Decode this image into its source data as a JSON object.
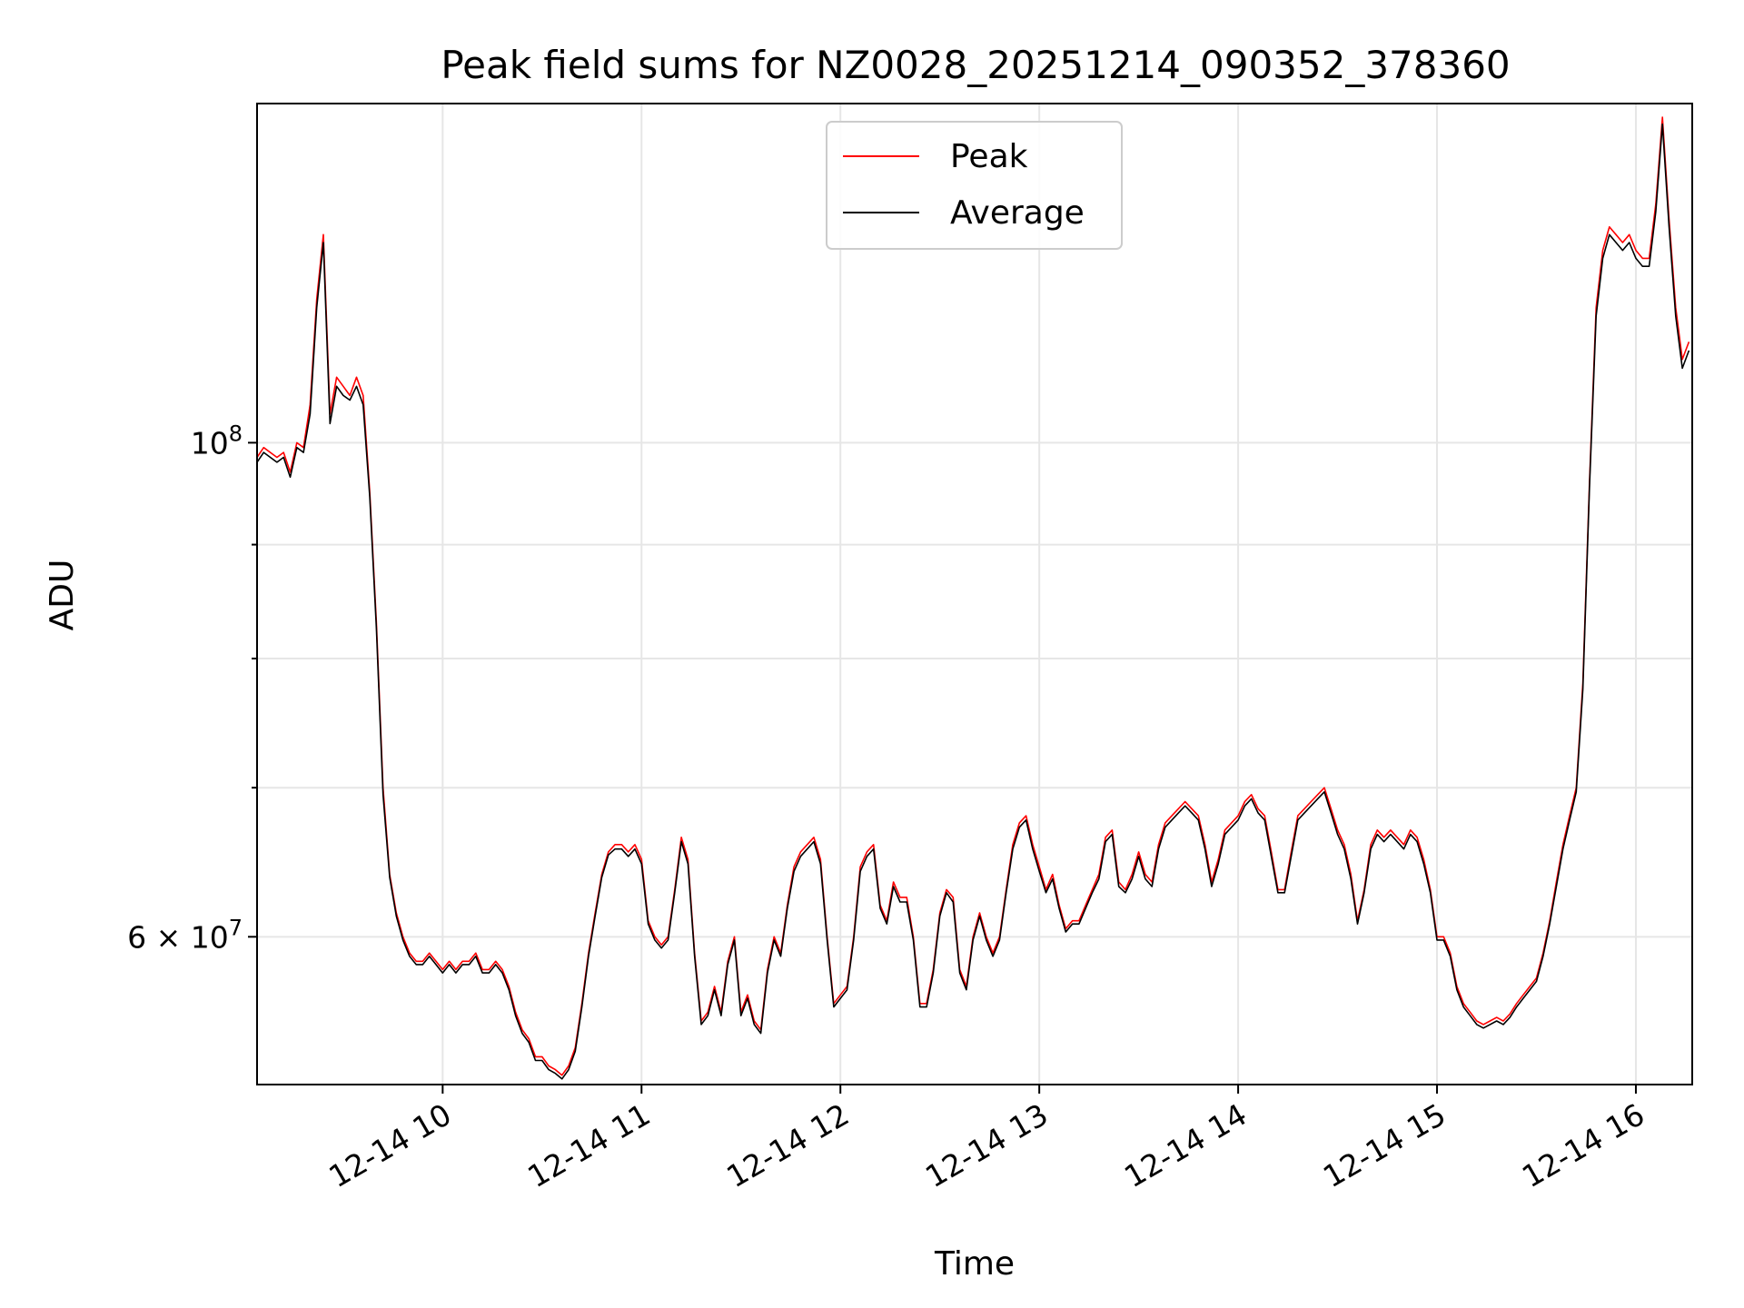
{
  "chart_data": {
    "type": "line",
    "title": "Peak field sums for NZ0028_20251214_090352_378360",
    "xlabel": "Time",
    "ylabel": "ADU",
    "yscale": "log",
    "grid": true,
    "legend_position": "top-center",
    "xlim": [
      "2025-12-14 09:04",
      "2025-12-14 16:17"
    ],
    "ylim": [
      51500000,
      142000000
    ],
    "x_ticks": [
      {
        "value": "2025-12-14 10:00",
        "label": "12-14 10"
      },
      {
        "value": "2025-12-14 11:00",
        "label": "12-14 11"
      },
      {
        "value": "2025-12-14 12:00",
        "label": "12-14 12"
      },
      {
        "value": "2025-12-14 13:00",
        "label": "12-14 13"
      },
      {
        "value": "2025-12-14 14:00",
        "label": "12-14 14"
      },
      {
        "value": "2025-12-14 15:00",
        "label": "12-14 15"
      },
      {
        "value": "2025-12-14 16:00",
        "label": "12-14 16"
      }
    ],
    "y_ticks_major": [
      {
        "value": 60000000,
        "label_base": "6 × 10",
        "label_exp": "7"
      },
      {
        "value": 100000000,
        "label_base": "10",
        "label_exp": "8"
      }
    ],
    "y_ticks_minor": [
      70000000,
      80000000,
      90000000
    ],
    "x": [
      "2025-12-14 09:04",
      "2025-12-14 09:06",
      "2025-12-14 09:08",
      "2025-12-14 09:10",
      "2025-12-14 09:12",
      "2025-12-14 09:14",
      "2025-12-14 09:16",
      "2025-12-14 09:18",
      "2025-12-14 09:20",
      "2025-12-14 09:22",
      "2025-12-14 09:24",
      "2025-12-14 09:26",
      "2025-12-14 09:28",
      "2025-12-14 09:30",
      "2025-12-14 09:32",
      "2025-12-14 09:34",
      "2025-12-14 09:36",
      "2025-12-14 09:38",
      "2025-12-14 09:40",
      "2025-12-14 09:42",
      "2025-12-14 09:44",
      "2025-12-14 09:46",
      "2025-12-14 09:48",
      "2025-12-14 09:50",
      "2025-12-14 09:52",
      "2025-12-14 09:54",
      "2025-12-14 09:56",
      "2025-12-14 09:58",
      "2025-12-14 10:00",
      "2025-12-14 10:02",
      "2025-12-14 10:04",
      "2025-12-14 10:06",
      "2025-12-14 10:08",
      "2025-12-14 10:10",
      "2025-12-14 10:12",
      "2025-12-14 10:14",
      "2025-12-14 10:16",
      "2025-12-14 10:18",
      "2025-12-14 10:20",
      "2025-12-14 10:22",
      "2025-12-14 10:24",
      "2025-12-14 10:26",
      "2025-12-14 10:28",
      "2025-12-14 10:30",
      "2025-12-14 10:32",
      "2025-12-14 10:34",
      "2025-12-14 10:36",
      "2025-12-14 10:38",
      "2025-12-14 10:40",
      "2025-12-14 10:42",
      "2025-12-14 10:44",
      "2025-12-14 10:46",
      "2025-12-14 10:48",
      "2025-12-14 10:50",
      "2025-12-14 10:52",
      "2025-12-14 10:54",
      "2025-12-14 10:56",
      "2025-12-14 10:58",
      "2025-12-14 11:00",
      "2025-12-14 11:02",
      "2025-12-14 11:04",
      "2025-12-14 11:06",
      "2025-12-14 11:08",
      "2025-12-14 11:10",
      "2025-12-14 11:12",
      "2025-12-14 11:14",
      "2025-12-14 11:16",
      "2025-12-14 11:18",
      "2025-12-14 11:20",
      "2025-12-14 11:22",
      "2025-12-14 11:24",
      "2025-12-14 11:26",
      "2025-12-14 11:28",
      "2025-12-14 11:30",
      "2025-12-14 11:32",
      "2025-12-14 11:34",
      "2025-12-14 11:36",
      "2025-12-14 11:38",
      "2025-12-14 11:40",
      "2025-12-14 11:42",
      "2025-12-14 11:44",
      "2025-12-14 11:46",
      "2025-12-14 11:48",
      "2025-12-14 11:50",
      "2025-12-14 11:52",
      "2025-12-14 11:54",
      "2025-12-14 11:56",
      "2025-12-14 11:58",
      "2025-12-14 12:00",
      "2025-12-14 12:02",
      "2025-12-14 12:04",
      "2025-12-14 12:06",
      "2025-12-14 12:08",
      "2025-12-14 12:10",
      "2025-12-14 12:12",
      "2025-12-14 12:14",
      "2025-12-14 12:16",
      "2025-12-14 12:18",
      "2025-12-14 12:20",
      "2025-12-14 12:22",
      "2025-12-14 12:24",
      "2025-12-14 12:26",
      "2025-12-14 12:28",
      "2025-12-14 12:30",
      "2025-12-14 12:32",
      "2025-12-14 12:34",
      "2025-12-14 12:36",
      "2025-12-14 12:38",
      "2025-12-14 12:40",
      "2025-12-14 12:42",
      "2025-12-14 12:44",
      "2025-12-14 12:46",
      "2025-12-14 12:48",
      "2025-12-14 12:50",
      "2025-12-14 12:52",
      "2025-12-14 12:54",
      "2025-12-14 12:56",
      "2025-12-14 12:58",
      "2025-12-14 13:00",
      "2025-12-14 13:02",
      "2025-12-14 13:04",
      "2025-12-14 13:06",
      "2025-12-14 13:08",
      "2025-12-14 13:10",
      "2025-12-14 13:12",
      "2025-12-14 13:14",
      "2025-12-14 13:16",
      "2025-12-14 13:18",
      "2025-12-14 13:20",
      "2025-12-14 13:22",
      "2025-12-14 13:24",
      "2025-12-14 13:26",
      "2025-12-14 13:28",
      "2025-12-14 13:30",
      "2025-12-14 13:32",
      "2025-12-14 13:34",
      "2025-12-14 13:36",
      "2025-12-14 13:38",
      "2025-12-14 13:40",
      "2025-12-14 13:42",
      "2025-12-14 13:44",
      "2025-12-14 13:46",
      "2025-12-14 13:48",
      "2025-12-14 13:50",
      "2025-12-14 13:52",
      "2025-12-14 13:54",
      "2025-12-14 13:56",
      "2025-12-14 13:58",
      "2025-12-14 14:00",
      "2025-12-14 14:02",
      "2025-12-14 14:04",
      "2025-12-14 14:06",
      "2025-12-14 14:08",
      "2025-12-14 14:10",
      "2025-12-14 14:12",
      "2025-12-14 14:14",
      "2025-12-14 14:16",
      "2025-12-14 14:18",
      "2025-12-14 14:20",
      "2025-12-14 14:22",
      "2025-12-14 14:24",
      "2025-12-14 14:26",
      "2025-12-14 14:28",
      "2025-12-14 14:30",
      "2025-12-14 14:32",
      "2025-12-14 14:34",
      "2025-12-14 14:36",
      "2025-12-14 14:38",
      "2025-12-14 14:40",
      "2025-12-14 14:42",
      "2025-12-14 14:44",
      "2025-12-14 14:46",
      "2025-12-14 14:48",
      "2025-12-14 14:50",
      "2025-12-14 14:52",
      "2025-12-14 14:54",
      "2025-12-14 14:56",
      "2025-12-14 14:58",
      "2025-12-14 15:00",
      "2025-12-14 15:02",
      "2025-12-14 15:04",
      "2025-12-14 15:06",
      "2025-12-14 15:08",
      "2025-12-14 15:10",
      "2025-12-14 15:12",
      "2025-12-14 15:14",
      "2025-12-14 15:16",
      "2025-12-14 15:18",
      "2025-12-14 15:20",
      "2025-12-14 15:22",
      "2025-12-14 15:24",
      "2025-12-14 15:26",
      "2025-12-14 15:28",
      "2025-12-14 15:30",
      "2025-12-14 15:32",
      "2025-12-14 15:34",
      "2025-12-14 15:36",
      "2025-12-14 15:38",
      "2025-12-14 15:40",
      "2025-12-14 15:42",
      "2025-12-14 15:44",
      "2025-12-14 15:46",
      "2025-12-14 15:48",
      "2025-12-14 15:50",
      "2025-12-14 15:52",
      "2025-12-14 15:54",
      "2025-12-14 15:56",
      "2025-12-14 15:58",
      "2025-12-14 16:00",
      "2025-12-14 16:02",
      "2025-12-14 16:04",
      "2025-12-14 16:06",
      "2025-12-14 16:08",
      "2025-12-14 16:10",
      "2025-12-14 16:12",
      "2025-12-14 16:14",
      "2025-12-14 16:16"
    ],
    "series": [
      {
        "name": "Peak",
        "color": "#ff0000",
        "values": [
          98500000,
          99500000,
          99000000,
          98500000,
          99000000,
          97000000,
          100000000,
          99500000,
          104000000,
          116000000,
          124000000,
          103000000,
          107000000,
          106000000,
          105000000,
          107000000,
          105000000,
          95000000,
          83000000,
          70000000,
          64000000,
          61500000,
          60000000,
          59000000,
          58500000,
          58500000,
          59000000,
          58500000,
          58000000,
          58500000,
          58000000,
          58500000,
          58500000,
          59000000,
          58000000,
          58000000,
          58500000,
          58000000,
          57000000,
          55500000,
          54500000,
          54000000,
          53000000,
          53000000,
          52500000,
          52300000,
          52000000,
          52500000,
          53500000,
          56000000,
          59000000,
          61500000,
          64000000,
          65500000,
          66000000,
          66000000,
          65500000,
          66000000,
          65000000,
          61000000,
          60000000,
          59500000,
          60000000,
          63000000,
          66500000,
          65000000,
          59000000,
          55000000,
          55500000,
          57000000,
          55500000,
          58500000,
          60000000,
          55500000,
          56500000,
          55000000,
          54500000,
          58000000,
          60000000,
          59000000,
          62000000,
          64500000,
          65500000,
          66000000,
          66500000,
          65000000,
          60000000,
          56000000,
          56500000,
          57000000,
          60000000,
          64500000,
          65500000,
          66000000,
          62000000,
          61000000,
          63500000,
          62500000,
          62500000,
          60000000,
          56000000,
          56000000,
          58000000,
          61500000,
          63000000,
          62500000,
          58000000,
          57000000,
          60000000,
          61500000,
          60000000,
          59000000,
          60000000,
          63000000,
          66000000,
          67500000,
          68000000,
          66000000,
          64500000,
          63000000,
          64000000,
          62000000,
          60500000,
          61000000,
          61000000,
          62000000,
          63000000,
          64000000,
          66500000,
          67000000,
          63500000,
          63000000,
          64000000,
          65500000,
          64000000,
          63500000,
          66000000,
          67500000,
          68000000,
          68500000,
          69000000,
          68500000,
          68000000,
          66000000,
          63500000,
          65000000,
          67000000,
          67500000,
          68000000,
          69000000,
          69500000,
          68500000,
          68000000,
          65500000,
          63000000,
          63000000,
          65500000,
          68000000,
          68500000,
          69000000,
          69500000,
          70000000,
          68500000,
          67000000,
          66000000,
          64000000,
          61000000,
          63000000,
          66000000,
          67000000,
          66500000,
          67000000,
          66500000,
          66000000,
          67000000,
          66500000,
          65000000,
          63000000,
          60000000,
          60000000,
          59000000,
          57000000,
          56000000,
          55500000,
          55000000,
          54800000,
          55000000,
          55200000,
          55000000,
          55400000,
          56000000,
          56500000,
          57000000,
          57500000,
          59000000,
          61000000,
          63500000,
          66000000,
          68000000,
          70000000,
          78000000,
          96000000,
          115000000,
          122000000,
          125000000,
          124000000,
          123000000,
          124000000,
          122000000,
          121000000,
          121000000,
          128000000,
          140000000,
          126000000,
          115000000,
          109000000,
          111000000
        ]
      },
      {
        "name": "Average",
        "color": "#000000",
        "values": [
          98000000,
          99000000,
          98500000,
          98000000,
          98500000,
          96500000,
          99500000,
          99000000,
          103000000,
          115000000,
          123000000,
          102000000,
          106000000,
          105000000,
          104500000,
          106000000,
          104000000,
          94500000,
          82500000,
          69500000,
          63800000,
          61300000,
          59800000,
          58800000,
          58300000,
          58300000,
          58800000,
          58300000,
          57800000,
          58300000,
          57800000,
          58300000,
          58300000,
          58800000,
          57800000,
          57800000,
          58300000,
          57800000,
          56800000,
          55300000,
          54300000,
          53800000,
          52800000,
          52800000,
          52300000,
          52100000,
          51800000,
          52300000,
          53300000,
          55800000,
          58800000,
          61300000,
          63800000,
          65300000,
          65700000,
          65700000,
          65200000,
          65700000,
          64700000,
          60800000,
          59800000,
          59300000,
          59800000,
          62800000,
          66200000,
          64700000,
          58800000,
          54800000,
          55300000,
          56800000,
          55300000,
          58300000,
          59800000,
          55300000,
          56300000,
          54800000,
          54300000,
          57800000,
          59800000,
          58800000,
          61800000,
          64200000,
          65200000,
          65700000,
          66200000,
          64700000,
          59800000,
          55800000,
          56300000,
          56800000,
          59800000,
          64200000,
          65200000,
          65700000,
          61800000,
          60800000,
          63200000,
          62200000,
          62200000,
          59800000,
          55800000,
          55800000,
          57800000,
          61300000,
          62800000,
          62200000,
          57800000,
          56800000,
          59800000,
          61300000,
          59800000,
          58800000,
          59800000,
          62800000,
          65700000,
          67200000,
          67700000,
          65700000,
          64200000,
          62800000,
          63700000,
          61800000,
          60300000,
          60800000,
          60800000,
          61800000,
          62800000,
          63700000,
          66200000,
          66700000,
          63200000,
          62800000,
          63700000,
          65200000,
          63700000,
          63200000,
          65700000,
          67200000,
          67700000,
          68200000,
          68700000,
          68200000,
          67700000,
          65700000,
          63200000,
          64700000,
          66700000,
          67200000,
          67700000,
          68700000,
          69200000,
          68200000,
          67700000,
          65200000,
          62800000,
          62800000,
          65200000,
          67700000,
          68200000,
          68700000,
          69200000,
          69700000,
          68200000,
          66700000,
          65700000,
          63700000,
          60800000,
          62800000,
          65700000,
          66700000,
          66200000,
          66700000,
          66200000,
          65700000,
          66700000,
          66200000,
          64700000,
          62800000,
          59800000,
          59800000,
          58800000,
          56800000,
          55800000,
          55300000,
          54800000,
          54600000,
          54800000,
          55000000,
          54800000,
          55200000,
          55800000,
          56300000,
          56800000,
          57300000,
          58800000,
          60800000,
          63200000,
          65700000,
          67700000,
          69700000,
          77500000,
          95500000,
          114000000,
          121000000,
          124000000,
          123000000,
          122000000,
          123000000,
          121000000,
          120000000,
          120000000,
          127000000,
          139000000,
          125000000,
          114000000,
          108000000,
          110000000
        ]
      }
    ]
  }
}
